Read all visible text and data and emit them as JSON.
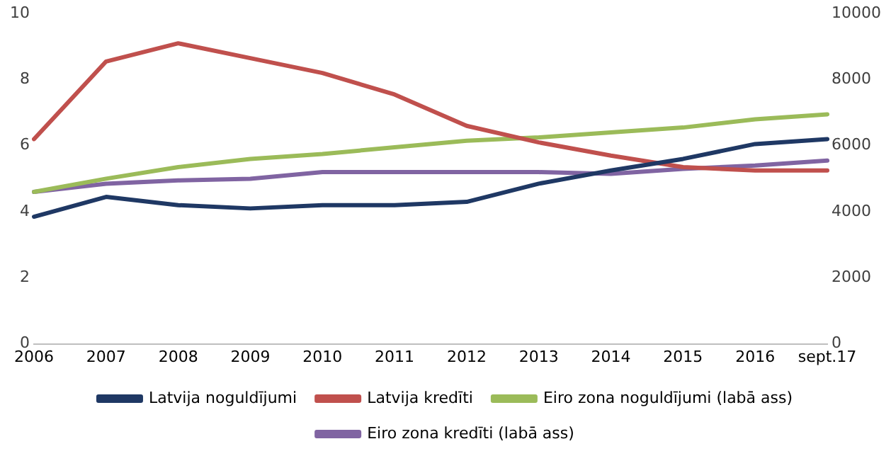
{
  "chart_data": {
    "type": "line",
    "categories": [
      "2006",
      "2007",
      "2008",
      "2009",
      "2010",
      "2011",
      "2012",
      "2013",
      "2014",
      "2015",
      "2016",
      "sept.17"
    ],
    "series": [
      {
        "name": "Latvija noguldījumi",
        "color": "#1f3864",
        "values": [
          3.85,
          4.45,
          4.2,
          4.1,
          4.2,
          4.2,
          4.3,
          4.85,
          5.25,
          5.6,
          6.05,
          6.2
        ]
      },
      {
        "name": "Latvija kredīti",
        "color": "#c0504d",
        "values": [
          6.2,
          8.55,
          9.1,
          8.65,
          8.2,
          7.55,
          6.6,
          6.1,
          5.7,
          5.35,
          5.25,
          5.25
        ]
      },
      {
        "name": "Eiro zona noguldījumi (labā ass)",
        "color": "#9bbb59",
        "axis": "y2",
        "values": [
          4600,
          5000,
          5350,
          5600,
          5750,
          5950,
          6150,
          6250,
          6400,
          6550,
          6800,
          6950
        ]
      },
      {
        "name": "Eiro zona kredīti (labā ass)",
        "color": "#8064a2",
        "axis": "y2",
        "values": [
          4600,
          4850,
          4950,
          5000,
          5200,
          5200,
          5200,
          5200,
          5150,
          5300,
          5400,
          5550
        ]
      }
    ],
    "ylim": [
      0,
      10
    ],
    "yticks": [
      0,
      2,
      4,
      6,
      8,
      10
    ],
    "y2lim": [
      0,
      10000
    ],
    "y2ticks": [
      0,
      2000,
      4000,
      6000,
      8000,
      10000
    ],
    "grid": false,
    "legend": "bottom",
    "marker": "none",
    "line_style": "solid"
  }
}
